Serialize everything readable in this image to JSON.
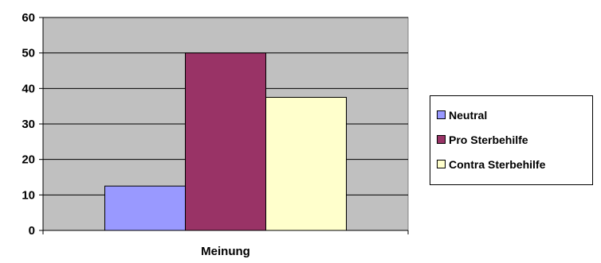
{
  "chart_data": {
    "type": "bar",
    "title": "",
    "xlabel": "",
    "ylabel": "",
    "categories": [
      "Meinung"
    ],
    "series": [
      {
        "name": "Neutral",
        "values": [
          12.5
        ],
        "color": "#9999FF"
      },
      {
        "name": "Pro Sterbehilfe",
        "values": [
          50
        ],
        "color": "#993366"
      },
      {
        "name": "Contra Sterbehilfe",
        "values": [
          37.5
        ],
        "color": "#FFFFCC"
      }
    ],
    "ylim": [
      0,
      60
    ],
    "yticks": [
      0,
      10,
      20,
      30,
      40,
      50,
      60
    ],
    "grid": true,
    "plot_background": "#C0C0C0",
    "legend_position": "right"
  },
  "legend": {
    "items": [
      {
        "label": "Neutral",
        "color": "#9999FF"
      },
      {
        "label": "Pro Sterbehilfe",
        "color": "#993366"
      },
      {
        "label": "Contra Sterbehilfe",
        "color": "#FFFFCC"
      }
    ]
  }
}
